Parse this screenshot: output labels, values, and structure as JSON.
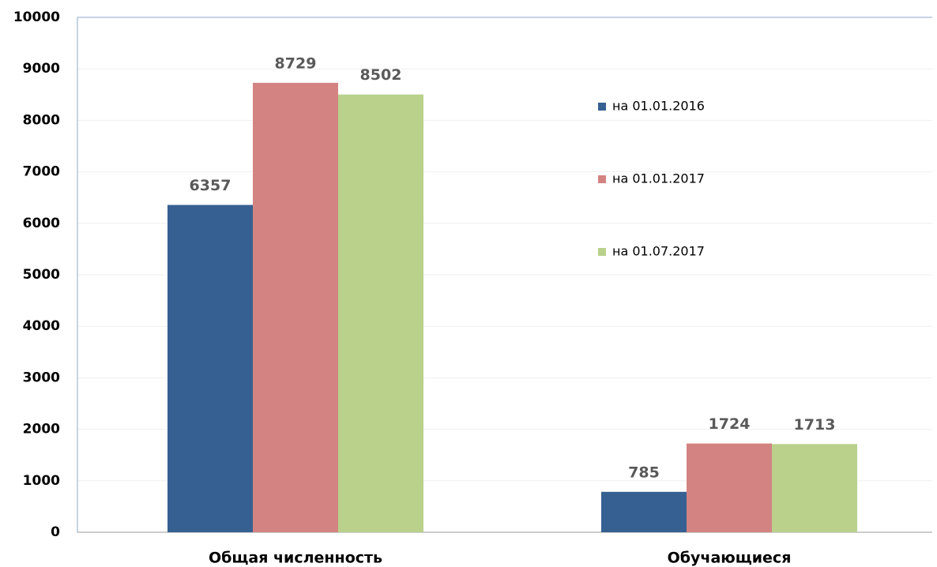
{
  "chart_data": {
    "type": "bar",
    "categories": [
      "Общая численность",
      "Обучающиеся"
    ],
    "series": [
      {
        "name": "на 01.01.2016",
        "color": "#376092",
        "values": [
          6357,
          785
        ]
      },
      {
        "name": "на 01.01.2017",
        "color": "#d38482",
        "values": [
          8729,
          1724
        ]
      },
      {
        "name": "на 01.07.2017",
        "color": "#b9d18b",
        "values": [
          8502,
          1713
        ]
      }
    ],
    "ylim": [
      0,
      10000
    ],
    "yticks": [
      0,
      1000,
      2000,
      3000,
      4000,
      5000,
      6000,
      7000,
      8000,
      9000,
      10000
    ],
    "grid": true,
    "legend": "right"
  }
}
